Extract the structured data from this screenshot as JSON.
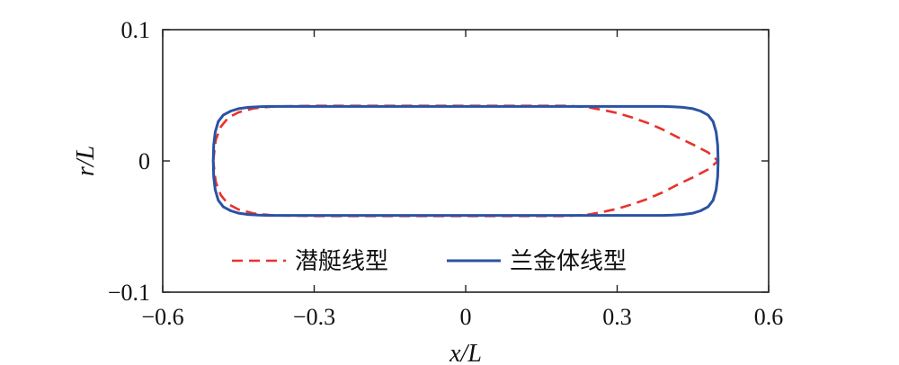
{
  "chart_data": {
    "type": "line",
    "title": "",
    "xlabel": "x/L",
    "ylabel": "r/L",
    "xlim": [
      -0.6,
      0.6
    ],
    "ylim": [
      -0.1,
      0.1
    ],
    "xticks": [
      -0.6,
      -0.3,
      0,
      0.3,
      0.6
    ],
    "xtick_labels": [
      "−0.6",
      "−0.3",
      "0",
      "0.3",
      "0.6"
    ],
    "yticks": [
      -0.1,
      0,
      0.1
    ],
    "ytick_labels": [
      "−0.1",
      "0",
      "0.1"
    ],
    "grid": false,
    "legend": {
      "position": "bottom-center",
      "frame": false
    },
    "series": [
      {
        "name": "潜艇线型",
        "color": "#e8322b",
        "dash": "dashed",
        "x": [
          -0.5,
          -0.495,
          -0.485,
          -0.47,
          -0.45,
          -0.42,
          -0.38,
          -0.3,
          -0.2,
          0,
          0.2,
          0.24,
          0.27,
          0.3,
          0.33,
          0.36,
          0.39,
          0.42,
          0.45,
          0.48,
          0.5
        ],
        "y": [
          0,
          0.016,
          0.026,
          0.033,
          0.037,
          0.04,
          0.0415,
          0.042,
          0.042,
          0.042,
          0.042,
          0.041,
          0.039,
          0.0365,
          0.033,
          0.029,
          0.024,
          0.018,
          0.0125,
          0.0065,
          0
        ]
      },
      {
        "name": "兰金体线型",
        "color": "#2b52a3",
        "dash": "solid",
        "x": [
          -0.5,
          -0.499,
          -0.496,
          -0.49,
          -0.48,
          -0.465,
          -0.45,
          -0.43,
          -0.41,
          -0.39,
          -0.3,
          -0.1,
          0,
          0.1,
          0.3,
          0.39,
          0.41,
          0.43,
          0.45,
          0.465,
          0.48,
          0.49,
          0.496,
          0.499,
          0.5
        ],
        "y": [
          0,
          0.012,
          0.022,
          0.03,
          0.035,
          0.038,
          0.0398,
          0.0408,
          0.0413,
          0.0415,
          0.0415,
          0.0415,
          0.0415,
          0.0415,
          0.0415,
          0.0415,
          0.0413,
          0.0408,
          0.0398,
          0.038,
          0.035,
          0.03,
          0.022,
          0.012,
          0
        ]
      }
    ]
  }
}
